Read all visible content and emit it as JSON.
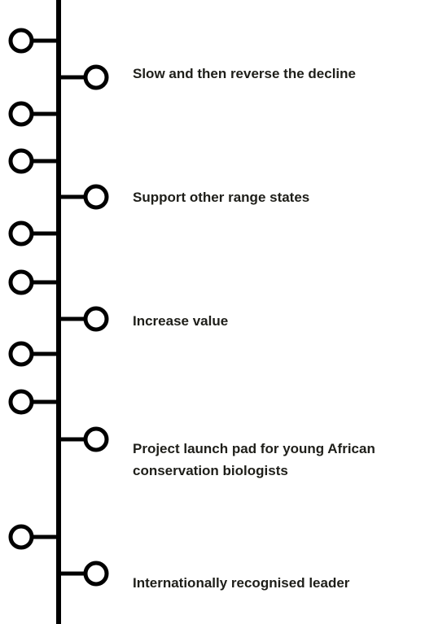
{
  "items": [
    {
      "lines": [
        "Slow and then reverse the decline"
      ]
    },
    {
      "lines": [
        "Support other range states"
      ]
    },
    {
      "lines": [
        "Increase value"
      ]
    },
    {
      "lines": [
        "Project launch pad for young African",
        "conservation biologists"
      ]
    },
    {
      "lines": [
        "Internationally recognised leader"
      ]
    }
  ]
}
